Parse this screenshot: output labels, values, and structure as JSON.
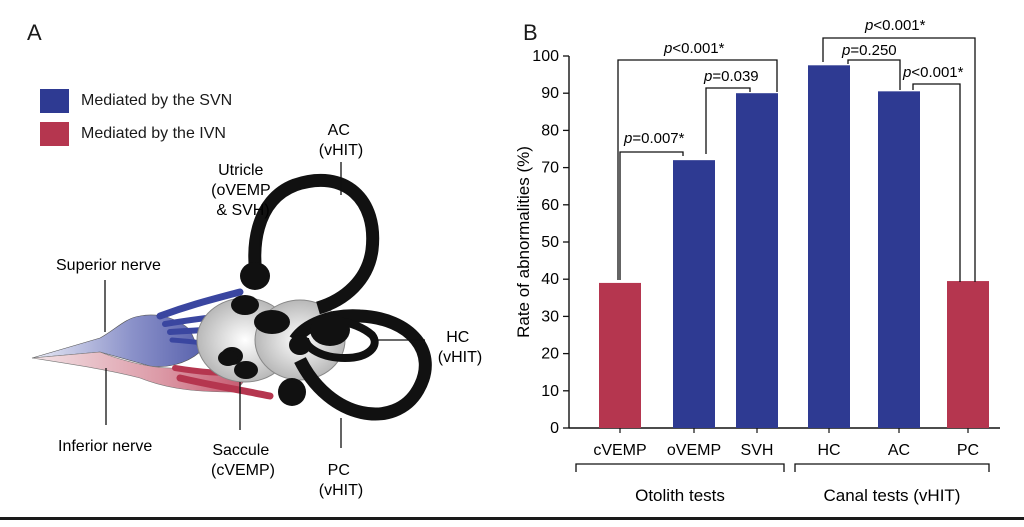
{
  "panel_a": {
    "letter": "A",
    "legend": [
      {
        "label": "Mediated by the SVN",
        "color": "#2e3a92"
      },
      {
        "label": "Mediated by the IVN",
        "color": "#b5364f"
      }
    ],
    "labels": {
      "ac": [
        "AC",
        "(vHIT)"
      ],
      "utricle": [
        "Utricle",
        "(oVEMP",
        "& SVH)"
      ],
      "superior_nerve": "Superior nerve",
      "hc": [
        "HC",
        "(vHIT)"
      ],
      "inferior_nerve": "Inferior nerve",
      "saccule": [
        "Saccule",
        "(cVEMP)"
      ],
      "pc": [
        "PC",
        "(vHIT)"
      ]
    }
  },
  "panel_b": {
    "letter": "B",
    "group_labels": [
      "Otolith tests",
      "Canal tests (vHIT)"
    ],
    "comparisons": [
      {
        "p": "p",
        "rest": "=0.007*"
      },
      {
        "p": "p",
        "rest": "=0.039"
      },
      {
        "p": "p",
        "rest": "<0.001*"
      },
      {
        "p": "p",
        "rest": "=0.250"
      },
      {
        "p": "p",
        "rest": "<0.001*"
      },
      {
        "p": "p",
        "rest": "<0.001*"
      }
    ]
  },
  "chart_data": {
    "type": "bar",
    "categories": [
      "cVEMP",
      "oVEMP",
      "SVH",
      "HC",
      "AC",
      "PC"
    ],
    "values": [
      39,
      72,
      90,
      97.5,
      90.5,
      39.5
    ],
    "colors": [
      "#b5364f",
      "#2e3a92",
      "#2e3a92",
      "#2e3a92",
      "#2e3a92",
      "#b5364f"
    ],
    "ylabel": "Rate of abnormalities (%)",
    "ylim": [
      0,
      100
    ],
    "yticks": [
      "0",
      "10",
      "20",
      "30",
      "40",
      "50",
      "60",
      "70",
      "80",
      "90",
      "100"
    ],
    "groups": [
      {
        "label": "Otolith tests",
        "categories": [
          "cVEMP",
          "oVEMP",
          "SVH"
        ]
      },
      {
        "label": "Canal tests (vHIT)",
        "categories": [
          "HC",
          "AC",
          "PC"
        ]
      }
    ],
    "grid": false,
    "legend": "none"
  }
}
